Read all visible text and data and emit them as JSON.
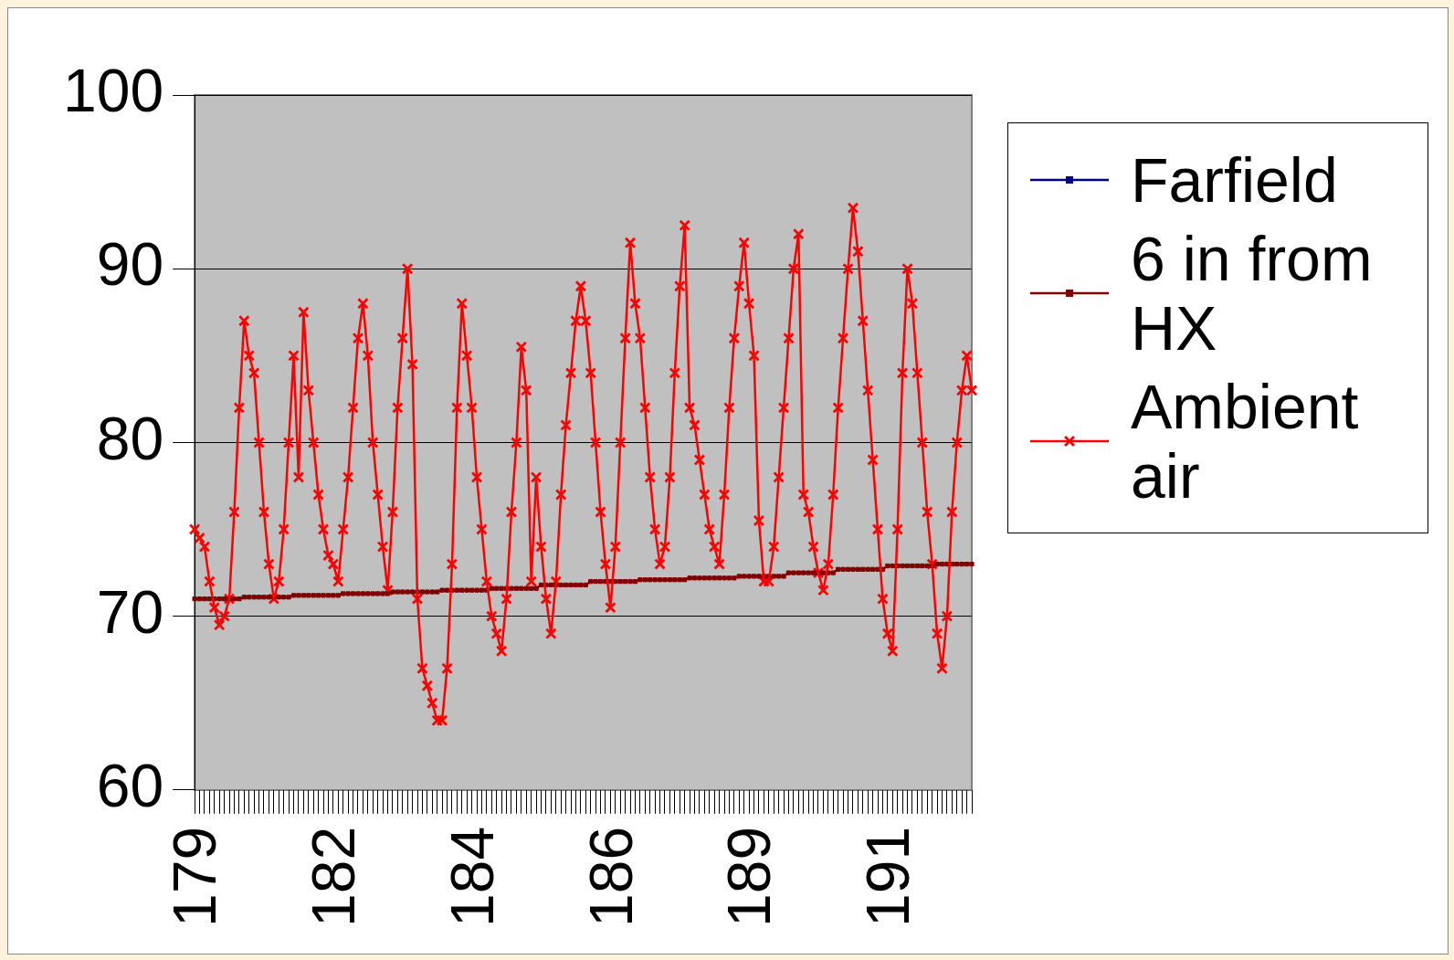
{
  "chart_data": {
    "type": "line",
    "categories": [
      "179",
      null,
      null,
      null,
      null,
      null,
      null,
      null,
      null,
      null,
      null,
      null,
      null,
      null,
      null,
      null,
      null,
      null,
      null,
      null,
      null,
      null,
      null,
      null,
      null,
      null,
      null,
      null,
      "182",
      null,
      null,
      null,
      null,
      null,
      null,
      null,
      null,
      null,
      null,
      null,
      null,
      null,
      null,
      null,
      null,
      null,
      null,
      null,
      null,
      null,
      null,
      null,
      null,
      null,
      null,
      null,
      "184",
      null,
      null,
      null,
      null,
      null,
      null,
      null,
      null,
      null,
      null,
      null,
      null,
      null,
      null,
      null,
      null,
      null,
      null,
      null,
      null,
      null,
      null,
      null,
      null,
      null,
      null,
      null,
      "186",
      null,
      null,
      null,
      null,
      null,
      null,
      null,
      null,
      null,
      null,
      null,
      null,
      null,
      null,
      null,
      null,
      null,
      null,
      null,
      null,
      null,
      null,
      null,
      null,
      null,
      null,
      null,
      "189",
      null,
      null,
      null,
      null,
      null,
      null,
      null,
      null,
      null,
      null,
      null,
      null,
      null,
      null,
      null,
      null,
      null,
      null,
      null,
      null,
      null,
      null,
      null,
      null,
      null,
      null,
      null,
      "191",
      null,
      null,
      null,
      null,
      null,
      null,
      null,
      null,
      null,
      null,
      null,
      null,
      null,
      null,
      null,
      null,
      null
    ],
    "series": [
      {
        "name": "Farfield",
        "color": "#000080",
        "marker": "square",
        "values": [
          null,
          null,
          null,
          null,
          null,
          null,
          null,
          null,
          null,
          null,
          null,
          null,
          null,
          null,
          null,
          null,
          null,
          null,
          null,
          null,
          null,
          null,
          null,
          null,
          null,
          null,
          null,
          null,
          null,
          null,
          null,
          null,
          null,
          null,
          null,
          null,
          null,
          null,
          null,
          null,
          null,
          null,
          null,
          null,
          null,
          null,
          null,
          null,
          null,
          null,
          null,
          null,
          null,
          null,
          null,
          null,
          null,
          null,
          null,
          null,
          null,
          null,
          null,
          null,
          null,
          null,
          null,
          null,
          null,
          null,
          null,
          null,
          null,
          null,
          null,
          null,
          null,
          null,
          null,
          null,
          null,
          null,
          null,
          null,
          null,
          null,
          null,
          null,
          null,
          null,
          null,
          null,
          null,
          null,
          null,
          null,
          null,
          null,
          null,
          null,
          null,
          null,
          null,
          null,
          null,
          null,
          null,
          null,
          null,
          null,
          null,
          null,
          null,
          null,
          null,
          null,
          null,
          null,
          null,
          null,
          null,
          null,
          null,
          null,
          null,
          null,
          null,
          null,
          null,
          null,
          null,
          null,
          null,
          null,
          null,
          null,
          null,
          null,
          null,
          null,
          null,
          null,
          null,
          null,
          null,
          null,
          null,
          null,
          null,
          null,
          null,
          null,
          null,
          null,
          null,
          null,
          null,
          null
        ]
      },
      {
        "name": "6 in from HX",
        "color": "#800000",
        "marker": "square",
        "values": [
          71.0,
          71.0,
          71.0,
          71.0,
          71.0,
          71.0,
          71.0,
          71.0,
          71.0,
          71.0,
          71.1,
          71.1,
          71.1,
          71.1,
          71.1,
          71.1,
          71.1,
          71.1,
          71.1,
          71.1,
          71.2,
          71.2,
          71.2,
          71.2,
          71.2,
          71.2,
          71.2,
          71.2,
          71.2,
          71.2,
          71.3,
          71.3,
          71.3,
          71.3,
          71.3,
          71.3,
          71.3,
          71.3,
          71.3,
          71.3,
          71.4,
          71.4,
          71.4,
          71.4,
          71.4,
          71.4,
          71.4,
          71.4,
          71.4,
          71.4,
          71.5,
          71.5,
          71.5,
          71.5,
          71.5,
          71.5,
          71.5,
          71.5,
          71.5,
          71.5,
          71.6,
          71.6,
          71.6,
          71.6,
          71.6,
          71.6,
          71.6,
          71.6,
          71.6,
          71.6,
          71.8,
          71.8,
          71.8,
          71.8,
          71.8,
          71.8,
          71.8,
          71.8,
          71.8,
          71.8,
          72.0,
          72.0,
          72.0,
          72.0,
          72.0,
          72.0,
          72.0,
          72.0,
          72.0,
          72.0,
          72.1,
          72.1,
          72.1,
          72.1,
          72.1,
          72.1,
          72.1,
          72.1,
          72.1,
          72.1,
          72.2,
          72.2,
          72.2,
          72.2,
          72.2,
          72.2,
          72.2,
          72.2,
          72.2,
          72.2,
          72.3,
          72.3,
          72.3,
          72.3,
          72.3,
          72.3,
          72.3,
          72.3,
          72.3,
          72.3,
          72.5,
          72.5,
          72.5,
          72.5,
          72.5,
          72.5,
          72.5,
          72.5,
          72.5,
          72.5,
          72.7,
          72.7,
          72.7,
          72.7,
          72.7,
          72.7,
          72.7,
          72.7,
          72.7,
          72.7,
          72.9,
          72.9,
          72.9,
          72.9,
          72.9,
          72.9,
          72.9,
          72.9,
          72.9,
          72.9,
          73.0,
          73.0,
          73.0,
          73.0,
          73.0,
          73.0,
          73.0,
          73.0
        ]
      },
      {
        "name": "Ambient air",
        "color": "#ff0000",
        "marker": "cross",
        "values": [
          75,
          74.5,
          74,
          72,
          70.5,
          69.5,
          70,
          71,
          76,
          82,
          87,
          85,
          84,
          80,
          76,
          73,
          71,
          72,
          75,
          80,
          85,
          78,
          87.5,
          83,
          80,
          77,
          75,
          73.5,
          73,
          72,
          75,
          78,
          82,
          86,
          88,
          85,
          80,
          77,
          74,
          71.5,
          76,
          82,
          86,
          90,
          84.5,
          71,
          67,
          66,
          65,
          64,
          64,
          67,
          73,
          82,
          88,
          85,
          82,
          78,
          75,
          72,
          70,
          69,
          68,
          71,
          76,
          80,
          85.5,
          83,
          72,
          78,
          74,
          71,
          69,
          72,
          77,
          81,
          84,
          87,
          89,
          87,
          84,
          80,
          76,
          73,
          70.5,
          74,
          80,
          86,
          91.5,
          88,
          86,
          82,
          78,
          75,
          73,
          74,
          78,
          84,
          89,
          92.5,
          82,
          81,
          79,
          77,
          75,
          74,
          73,
          77,
          82,
          86,
          89,
          91.5,
          88,
          85,
          75.5,
          72,
          72,
          74,
          78,
          82,
          86,
          90,
          92,
          77,
          76,
          74,
          72.5,
          71.5,
          73,
          77,
          82,
          86,
          90,
          93.5,
          91,
          87,
          83,
          79,
          75,
          71,
          69,
          68,
          75,
          84,
          90,
          88,
          84,
          80,
          76,
          73,
          69,
          67,
          70,
          76,
          80,
          83,
          85,
          83
        ]
      }
    ],
    "ylim": [
      60,
      100
    ],
    "yticks": [
      60,
      70,
      80,
      90,
      100
    ],
    "grid": "y",
    "legend": "right"
  }
}
